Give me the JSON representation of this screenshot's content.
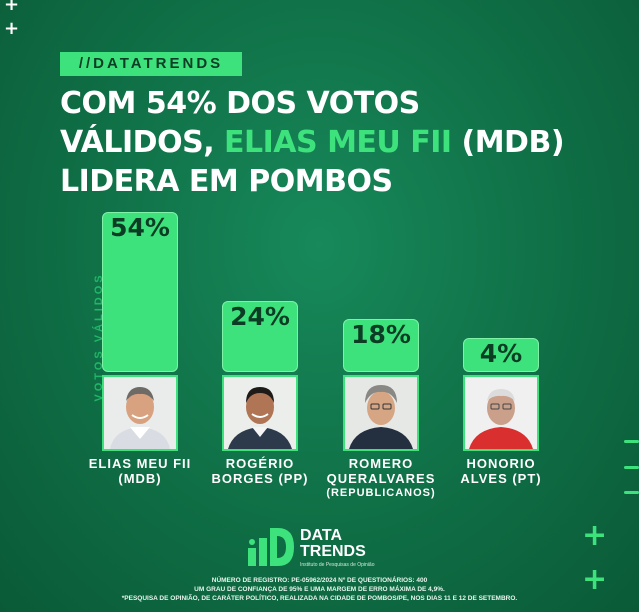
{
  "tag": "//DATATRENDS",
  "headline": {
    "line1": "COM 54% DOS VOTOS",
    "line2_pre": "VÁLIDOS, ",
    "line2_highlight": "ELIAS MEU FII",
    "line2_post": " (MDB)",
    "line3": "LIDERA EM POMBOS"
  },
  "colors": {
    "accent": "#3ee27d",
    "background": "#0f6e45",
    "dark_text": "#0b3d24"
  },
  "chart_data": {
    "type": "bar",
    "ylabel": "VOTOS VÁLIDOS",
    "ylim": [
      0,
      54
    ],
    "categories": [
      "ELIAS MEU FII (MDB)",
      "ROGÉRIO BORGES (PP)",
      "ROMERO QUERALVARES (REPUBLICANOS)",
      "HONORIO ALVES (PT)"
    ],
    "values": [
      54,
      24,
      18,
      4
    ],
    "labels": [
      "54%",
      "24%",
      "18%",
      "4%"
    ],
    "grid": false
  },
  "candidates": [
    {
      "name_line1": "ELIAS MEU FII",
      "name_line2": "(MDB)",
      "name_line3": ""
    },
    {
      "name_line1": "ROGÉRIO",
      "name_line2": "BORGES (PP)",
      "name_line3": ""
    },
    {
      "name_line1": "ROMERO",
      "name_line2": "QUERALVARES",
      "name_line3": "(REPUBLICANOS)"
    },
    {
      "name_line1": "HONORIO",
      "name_line2": "ALVES (PT)",
      "name_line3": ""
    }
  ],
  "logo": {
    "line1": "DATA",
    "line2": "TRENDS",
    "subtitle": "Instituto de Pesquisas de Opinião"
  },
  "footnote": {
    "line1": "NÚMERO DE REGISTRO: PE-05962/2024 Nº DE QUESTIONÁRIOS: 400",
    "line2": "UM GRAU DE CONFIANÇA DE 95% E UMA MARGEM DE ERRO MÁXIMA DE 4,9%.",
    "line3": "*PESQUISA DE OPINIÃO, DE CARÁTER POLÍTICO, REALIZADA NA CIDADE DE POMBOS/PE, NOS DIAS 11 E 12 DE SETEMBRO."
  }
}
